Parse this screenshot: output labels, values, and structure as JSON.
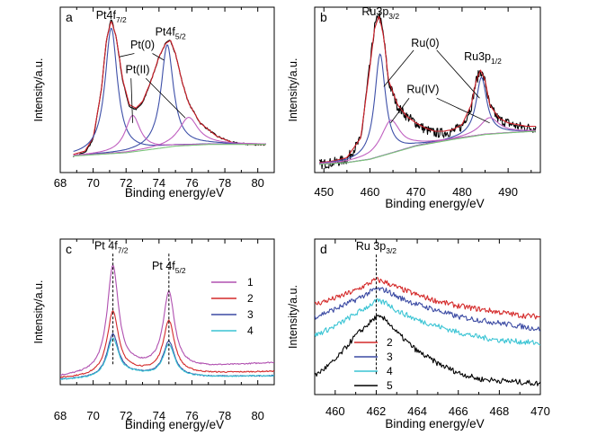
{
  "chart_data": [
    {
      "id": "a",
      "type": "line",
      "panel_label": "a",
      "xlabel": "Binding energy/eV",
      "ylabel": "Intensity/a.u.",
      "xlim": [
        68,
        81
      ],
      "ylim": [
        0,
        1
      ],
      "xticks": [
        68,
        70,
        72,
        74,
        76,
        78,
        80
      ],
      "annotations": [
        {
          "text": "Pt4f",
          "sub": "7/2",
          "x": 71.1,
          "y": 0.93
        },
        {
          "text": "Pt4f",
          "sub": "5/2",
          "x": 74.7,
          "y": 0.83
        },
        {
          "text": "Pt(0)",
          "x": 73.0,
          "y": 0.75
        },
        {
          "text": "Pt(II)",
          "x": 72.7,
          "y": 0.6
        }
      ],
      "series": [
        {
          "role": "raw",
          "color": "#000000",
          "x": [
            68.8,
            69.5,
            70.0,
            70.5,
            70.8,
            71.1,
            71.4,
            71.8,
            72.2,
            72.6,
            73.0,
            73.5,
            74.0,
            74.4,
            74.7,
            75.0,
            75.4,
            75.8,
            76.5,
            77.5,
            78.5,
            79.5,
            80.5
          ],
          "y": [
            0.1,
            0.12,
            0.2,
            0.5,
            0.8,
            0.93,
            0.82,
            0.55,
            0.4,
            0.38,
            0.42,
            0.55,
            0.7,
            0.78,
            0.8,
            0.72,
            0.55,
            0.42,
            0.3,
            0.22,
            0.18,
            0.17,
            0.17
          ]
        },
        {
          "role": "fit-envelope",
          "color": "#d0202a",
          "x": [
            68.8,
            69.5,
            70.0,
            70.5,
            70.8,
            71.1,
            71.4,
            71.8,
            72.2,
            72.6,
            73.0,
            73.5,
            74.0,
            74.4,
            74.7,
            75.0,
            75.4,
            75.8,
            76.5,
            77.5,
            78.5,
            79.5,
            80.5
          ],
          "y": [
            0.11,
            0.13,
            0.21,
            0.5,
            0.8,
            0.92,
            0.82,
            0.56,
            0.41,
            0.39,
            0.43,
            0.55,
            0.7,
            0.78,
            0.8,
            0.72,
            0.55,
            0.42,
            0.3,
            0.22,
            0.18,
            0.17,
            0.17
          ]
        },
        {
          "role": "Pt(0) 4f7/2",
          "color": "#3d4fa8",
          "peak": 71.1,
          "height": 0.76,
          "width": 0.45
        },
        {
          "role": "Pt(0) 4f5/2",
          "color": "#3d4fa8",
          "peak": 74.5,
          "height": 0.62,
          "width": 0.45
        },
        {
          "role": "Pt(II) 4f7/2",
          "color": "#c060c0",
          "peak": 72.4,
          "height": 0.22,
          "width": 0.55
        },
        {
          "role": "Pt(II) 4f5/2",
          "color": "#c060c0",
          "peak": 75.8,
          "height": 0.17,
          "width": 0.7
        },
        {
          "role": "background",
          "color": "#7ac47a",
          "x": [
            68.8,
            72.0,
            75.0,
            77.0,
            80.5
          ],
          "y": [
            0.1,
            0.12,
            0.16,
            0.17,
            0.17
          ]
        }
      ]
    },
    {
      "id": "b",
      "type": "line",
      "panel_label": "b",
      "xlabel": "Binding energy/eV",
      "ylabel": "Intensity/a.u.",
      "xlim": [
        448,
        497
      ],
      "ylim": [
        0,
        1
      ],
      "xticks": [
        450,
        460,
        470,
        480,
        490
      ],
      "annotations": [
        {
          "text": "Ru3p",
          "sub": "3/2",
          "x": 462.3,
          "y": 0.95
        },
        {
          "text": "Ru(0)",
          "x": 472.0,
          "y": 0.76
        },
        {
          "text": "Ru(IV)",
          "x": 471.5,
          "y": 0.48
        },
        {
          "text": "Ru3p",
          "sub": "1/2",
          "x": 484.5,
          "y": 0.68
        }
      ],
      "series": [
        {
          "role": "raw",
          "color": "#000000",
          "x": [
            449,
            452,
            455,
            458,
            460,
            461,
            462,
            463,
            464,
            466,
            468,
            470,
            472,
            474,
            476,
            478,
            480,
            482,
            483,
            484,
            485,
            486,
            488,
            490,
            492,
            494,
            496
          ],
          "y": [
            0.05,
            0.06,
            0.08,
            0.2,
            0.65,
            0.88,
            0.96,
            0.82,
            0.55,
            0.4,
            0.34,
            0.3,
            0.26,
            0.24,
            0.24,
            0.25,
            0.28,
            0.4,
            0.55,
            0.62,
            0.55,
            0.4,
            0.32,
            0.3,
            0.28,
            0.27,
            0.27
          ]
        },
        {
          "role": "fit-envelope",
          "color": "#d0202a",
          "x": [
            449,
            452,
            455,
            458,
            460,
            461,
            462,
            463,
            464,
            466,
            468,
            470,
            472,
            474,
            476,
            478,
            480,
            482,
            483,
            484,
            485,
            486,
            488,
            490,
            492,
            494,
            496
          ],
          "y": [
            0.06,
            0.07,
            0.09,
            0.21,
            0.64,
            0.87,
            0.95,
            0.82,
            0.56,
            0.41,
            0.34,
            0.3,
            0.27,
            0.25,
            0.25,
            0.26,
            0.29,
            0.41,
            0.55,
            0.62,
            0.56,
            0.41,
            0.33,
            0.3,
            0.29,
            0.28,
            0.28
          ]
        },
        {
          "role": "Ru(0) 3p3/2",
          "color": "#3d4fa8",
          "peak": 462.2,
          "height": 0.62,
          "width": 1.4
        },
        {
          "role": "Ru(0) 3p1/2",
          "color": "#3d4fa8",
          "peak": 484.2,
          "height": 0.35,
          "width": 1.4
        },
        {
          "role": "Ru(IV) 3p3/2",
          "color": "#c060c0",
          "peak": 464.5,
          "height": 0.2,
          "width": 2.5
        },
        {
          "role": "Ru(IV) 3p1/2",
          "color": "#c060c0",
          "peak": 486.0,
          "height": 0.1,
          "width": 2.5
        },
        {
          "role": "background",
          "color": "#7ac47a",
          "x": [
            449,
            455,
            460,
            465,
            470,
            478,
            485,
            490,
            496
          ],
          "y": [
            0.05,
            0.06,
            0.08,
            0.12,
            0.16,
            0.2,
            0.23,
            0.24,
            0.25
          ]
        }
      ]
    },
    {
      "id": "c",
      "type": "line",
      "panel_label": "c",
      "xlabel": "Binding energy/eV",
      "ylabel": "Intensity/a.u.",
      "xlim": [
        68,
        81
      ],
      "ylim": [
        0,
        1
      ],
      "xticks": [
        68,
        70,
        72,
        74,
        76,
        78,
        80
      ],
      "legend": "right-middle",
      "annotations": [
        {
          "text": "Pt 4f",
          "sub": "7/2",
          "x": 71.1,
          "y": 0.93
        },
        {
          "text": "Pt 4f",
          "sub": "5/2",
          "x": 74.6,
          "y": 0.79
        }
      ],
      "dashed_lines_x": [
        71.2,
        74.6
      ],
      "series": [
        {
          "name": "1",
          "color": "#b050b0",
          "base_left": 0.05,
          "base_right": 0.15,
          "peak1": 0.77,
          "peak2": 0.67
        },
        {
          "name": "2",
          "color": "#d42a2a",
          "base_left": 0.04,
          "base_right": 0.09,
          "peak1": 0.47,
          "peak2": 0.45
        },
        {
          "name": "3",
          "color": "#3b4aa3",
          "base_left": 0.03,
          "base_right": 0.06,
          "peak1": 0.32,
          "peak2": 0.3
        },
        {
          "name": "4",
          "color": "#3ac4d4",
          "base_left": 0.03,
          "base_right": 0.06,
          "peak1": 0.29,
          "peak2": 0.28
        }
      ]
    },
    {
      "id": "d",
      "type": "line",
      "panel_label": "d",
      "xlabel": "Binding energy/eV",
      "ylabel": "Intensity/a.u.",
      "xlim": [
        459,
        470
      ],
      "ylim": [
        0,
        1
      ],
      "xticks": [
        460,
        462,
        464,
        466,
        468,
        470
      ],
      "legend": "bottom-left",
      "annotations": [
        {
          "text": "Ru 3p",
          "sub": "3/2",
          "x": 462.0,
          "y": 0.93
        }
      ],
      "dashed_lines_x": [
        462.0
      ],
      "series": [
        {
          "name": "2",
          "color": "#d42a2a",
          "x": [
            459,
            460,
            461,
            462,
            462.5,
            463,
            464,
            465,
            466,
            467,
            468,
            469,
            470
          ],
          "y": [
            0.58,
            0.62,
            0.67,
            0.74,
            0.72,
            0.69,
            0.64,
            0.6,
            0.57,
            0.55,
            0.53,
            0.51,
            0.5
          ]
        },
        {
          "name": "3",
          "color": "#3b4aa3",
          "x": [
            459,
            460,
            461,
            462,
            462.5,
            463,
            464,
            465,
            466,
            467,
            468,
            469,
            470
          ],
          "y": [
            0.5,
            0.55,
            0.61,
            0.68,
            0.67,
            0.63,
            0.58,
            0.54,
            0.5,
            0.48,
            0.46,
            0.44,
            0.42
          ]
        },
        {
          "name": "4",
          "color": "#3ac4d4",
          "x": [
            459,
            460,
            461,
            462,
            462.5,
            463,
            464,
            465,
            466,
            467,
            468,
            469,
            470
          ],
          "y": [
            0.38,
            0.44,
            0.52,
            0.6,
            0.59,
            0.54,
            0.48,
            0.44,
            0.4,
            0.37,
            0.35,
            0.34,
            0.33
          ]
        },
        {
          "name": "5",
          "color": "#000000",
          "x": [
            459,
            460,
            461,
            462,
            462.5,
            463,
            464,
            465,
            466,
            467,
            468,
            469,
            470
          ],
          "y": [
            0.12,
            0.22,
            0.38,
            0.5,
            0.48,
            0.4,
            0.28,
            0.2,
            0.14,
            0.1,
            0.09,
            0.08,
            0.07
          ]
        }
      ]
    }
  ]
}
